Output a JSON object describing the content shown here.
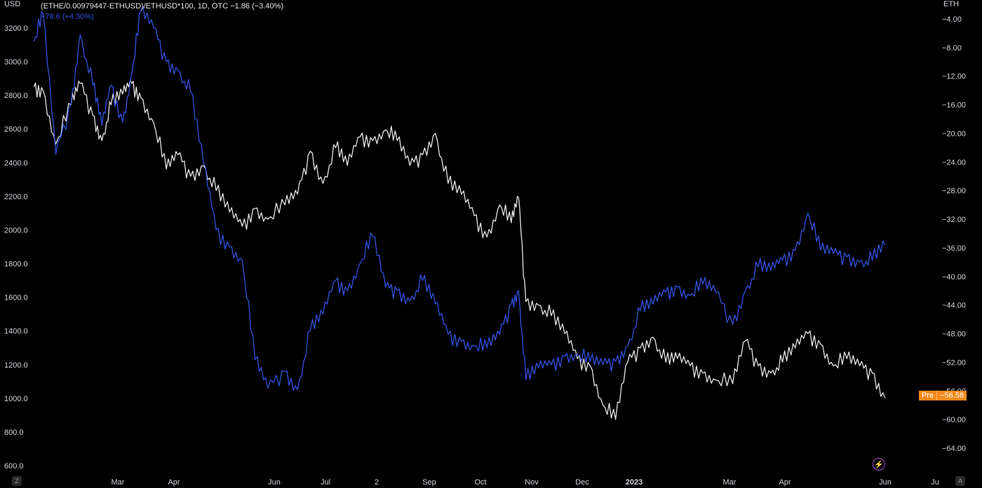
{
  "header": {
    "left_unit": "USD",
    "right_unit": "ETH",
    "title": "(ETHE/0.00979447-ETHUSD)/ETHUSD*100, 1D, OTC",
    "change": "−1.86 (−3.40%)",
    "series_label": "−78.6 (+4.30%)"
  },
  "badge": {
    "pre": "Pre",
    "value": "−56.58"
  },
  "corner_buttons": {
    "left": "Z",
    "right": "A"
  },
  "colors": {
    "white_line": "#e6e6e6",
    "blue_line": "#3352e0",
    "badge": "#f5891c",
    "bolt": "#a54fd6"
  },
  "chart_data": {
    "type": "line",
    "x_labels": [
      "Mar",
      "Apr",
      "Jun",
      "Jul",
      "2",
      "Sep",
      "Oct",
      "Nov",
      "Dec",
      "2023",
      "Mar",
      "Apr",
      "Jun",
      "Ju"
    ],
    "left_axis": {
      "unit": "USD",
      "ticks": [
        3200.0,
        3000.0,
        2800.0,
        2600.0,
        2400.0,
        2200.0,
        2000.0,
        1800.0,
        1600.0,
        1400.0,
        1200.0,
        1000.0,
        800.0,
        600.0
      ]
    },
    "right_axis": {
      "unit": "ETH",
      "ticks": [
        -4.0,
        -8.0,
        -12.0,
        -16.0,
        -20.0,
        -24.0,
        -28.0,
        -32.0,
        -36.0,
        -40.0,
        -44.0,
        -48.0,
        -52.0,
        -56.0,
        -60.0,
        -64.0
      ]
    },
    "series": [
      {
        "axis": "right",
        "color": "#e6e6e6",
        "points": [
          [
            "Feb-15",
            -13.5
          ],
          [
            "Feb-20",
            -14.0
          ],
          [
            "Feb-27",
            -21.5
          ],
          [
            "Mar-05",
            -16.0
          ],
          [
            "Mar-10",
            -13.0
          ],
          [
            "Mar-17",
            -17.5
          ],
          [
            "Mar-22",
            -21.0
          ],
          [
            "Mar-27",
            -16.0
          ],
          [
            "Apr-03",
            -14.5
          ],
          [
            "Apr-08",
            -13.0
          ],
          [
            "Apr-13",
            -15.0
          ],
          [
            "Apr-20",
            -18.5
          ],
          [
            "Apr-27",
            -25.0
          ],
          [
            "May-03",
            -23.0
          ],
          [
            "May-10",
            -26.0
          ],
          [
            "May-17",
            -24.5
          ],
          [
            "May-24",
            -28.0
          ],
          [
            "Jun-01",
            -31.0
          ],
          [
            "Jun-08",
            -33.0
          ],
          [
            "Jun-15",
            -30.5
          ],
          [
            "Jun-22",
            -32.0
          ],
          [
            "Jul-01",
            -30.0
          ],
          [
            "Jul-08",
            -28.5
          ],
          [
            "Jul-15",
            -22.5
          ],
          [
            "Jul-22",
            -27.0
          ],
          [
            "Jul-29",
            -22.0
          ],
          [
            "Aug-05",
            -24.5
          ],
          [
            "Aug-12",
            -20.5
          ],
          [
            "Aug-19",
            -21.0
          ],
          [
            "Aug-26",
            -19.5
          ],
          [
            "Sep-02",
            -21.0
          ],
          [
            "Sep-09",
            -24.5
          ],
          [
            "Sep-16",
            -23.0
          ],
          [
            "Sep-23",
            -20.0
          ],
          [
            "Sep-30",
            -27.0
          ],
          [
            "Oct-07",
            -28.5
          ],
          [
            "Oct-14",
            -31.5
          ],
          [
            "Oct-21",
            -34.5
          ],
          [
            "Oct-28",
            -30.0
          ],
          [
            "Nov-04",
            -32.5
          ],
          [
            "Nov-08",
            -29.0
          ],
          [
            "Nov-12",
            -43.5
          ],
          [
            "Nov-19",
            -44.0
          ],
          [
            "Nov-26",
            -45.5
          ],
          [
            "Dec-03",
            -48.0
          ],
          [
            "Dec-10",
            -51.5
          ],
          [
            "Dec-17",
            -52.5
          ],
          [
            "Dec-24",
            -58.0
          ],
          [
            "Dec-31",
            -60.0
          ],
          [
            "Jan-07",
            -52.0
          ],
          [
            "Jan-14",
            -50.0
          ],
          [
            "Jan-21",
            -48.5
          ],
          [
            "Jan-28",
            -52.0
          ],
          [
            "Feb-04",
            -51.5
          ],
          [
            "Feb-11",
            -52.5
          ],
          [
            "Feb-18",
            -53.5
          ],
          [
            "Feb-25",
            -54.5
          ],
          [
            "Mar-04",
            -55.0
          ],
          [
            "Mar-11",
            -49.0
          ],
          [
            "Mar-18",
            -52.5
          ],
          [
            "Mar-25",
            -53.5
          ],
          [
            "Apr-01",
            -52.0
          ],
          [
            "Apr-08",
            -50.0
          ],
          [
            "Apr-15",
            -48.0
          ],
          [
            "Apr-22",
            -49.5
          ],
          [
            "Apr-29",
            -52.5
          ],
          [
            "May-06",
            -51.5
          ],
          [
            "May-13",
            -52.5
          ],
          [
            "May-20",
            -53.5
          ],
          [
            "May-27",
            -57.0
          ]
        ]
      },
      {
        "axis": "left",
        "color": "#3352e0",
        "points": [
          [
            "Feb-15",
            3120
          ],
          [
            "Feb-20",
            3280
          ],
          [
            "Feb-27",
            2450
          ],
          [
            "Mar-05",
            2750
          ],
          [
            "Mar-10",
            3160
          ],
          [
            "Mar-17",
            2860
          ],
          [
            "Mar-22",
            2620
          ],
          [
            "Mar-27",
            2860
          ],
          [
            "Apr-03",
            2640
          ],
          [
            "Apr-08",
            2930
          ],
          [
            "Apr-13",
            3300
          ],
          [
            "Apr-20",
            3200
          ],
          [
            "Apr-27",
            3000
          ],
          [
            "May-03",
            2950
          ],
          [
            "May-10",
            2820
          ],
          [
            "May-17",
            2400
          ],
          [
            "May-24",
            2000
          ],
          [
            "Jun-01",
            1900
          ],
          [
            "Jun-08",
            1820
          ],
          [
            "Jun-15",
            1230
          ],
          [
            "Jun-22",
            1060
          ],
          [
            "Jul-01",
            1160
          ],
          [
            "Jul-08",
            1050
          ],
          [
            "Jul-15",
            1400
          ],
          [
            "Jul-22",
            1500
          ],
          [
            "Jul-29",
            1700
          ],
          [
            "Aug-05",
            1640
          ],
          [
            "Aug-12",
            1800
          ],
          [
            "Aug-19",
            1960
          ],
          [
            "Aug-26",
            1660
          ],
          [
            "Sep-02",
            1640
          ],
          [
            "Sep-09",
            1580
          ],
          [
            "Sep-16",
            1700
          ],
          [
            "Sep-23",
            1560
          ],
          [
            "Sep-30",
            1380
          ],
          [
            "Oct-07",
            1340
          ],
          [
            "Oct-14",
            1310
          ],
          [
            "Oct-21",
            1300
          ],
          [
            "Oct-28",
            1380
          ],
          [
            "Nov-04",
            1560
          ],
          [
            "Nov-08",
            1640
          ],
          [
            "Nov-12",
            1110
          ],
          [
            "Nov-19",
            1180
          ],
          [
            "Nov-26",
            1200
          ],
          [
            "Dec-03",
            1250
          ],
          [
            "Dec-10",
            1260
          ],
          [
            "Dec-17",
            1220
          ],
          [
            "Dec-24",
            1200
          ],
          [
            "Dec-31",
            1220
          ],
          [
            "Jan-07",
            1310
          ],
          [
            "Jan-14",
            1520
          ],
          [
            "Jan-21",
            1560
          ],
          [
            "Jan-28",
            1630
          ],
          [
            "Feb-04",
            1660
          ],
          [
            "Feb-11",
            1610
          ],
          [
            "Feb-18",
            1680
          ],
          [
            "Feb-25",
            1630
          ],
          [
            "Mar-04",
            1440
          ],
          [
            "Mar-11",
            1640
          ],
          [
            "Mar-18",
            1780
          ],
          [
            "Mar-25",
            1760
          ],
          [
            "Apr-01",
            1820
          ],
          [
            "Apr-08",
            1880
          ],
          [
            "Apr-15",
            2100
          ],
          [
            "Apr-22",
            1880
          ],
          [
            "Apr-29",
            1860
          ],
          [
            "May-06",
            1840
          ],
          [
            "May-13",
            1810
          ],
          [
            "May-20",
            1820
          ],
          [
            "May-27",
            1910
          ]
        ]
      }
    ]
  }
}
